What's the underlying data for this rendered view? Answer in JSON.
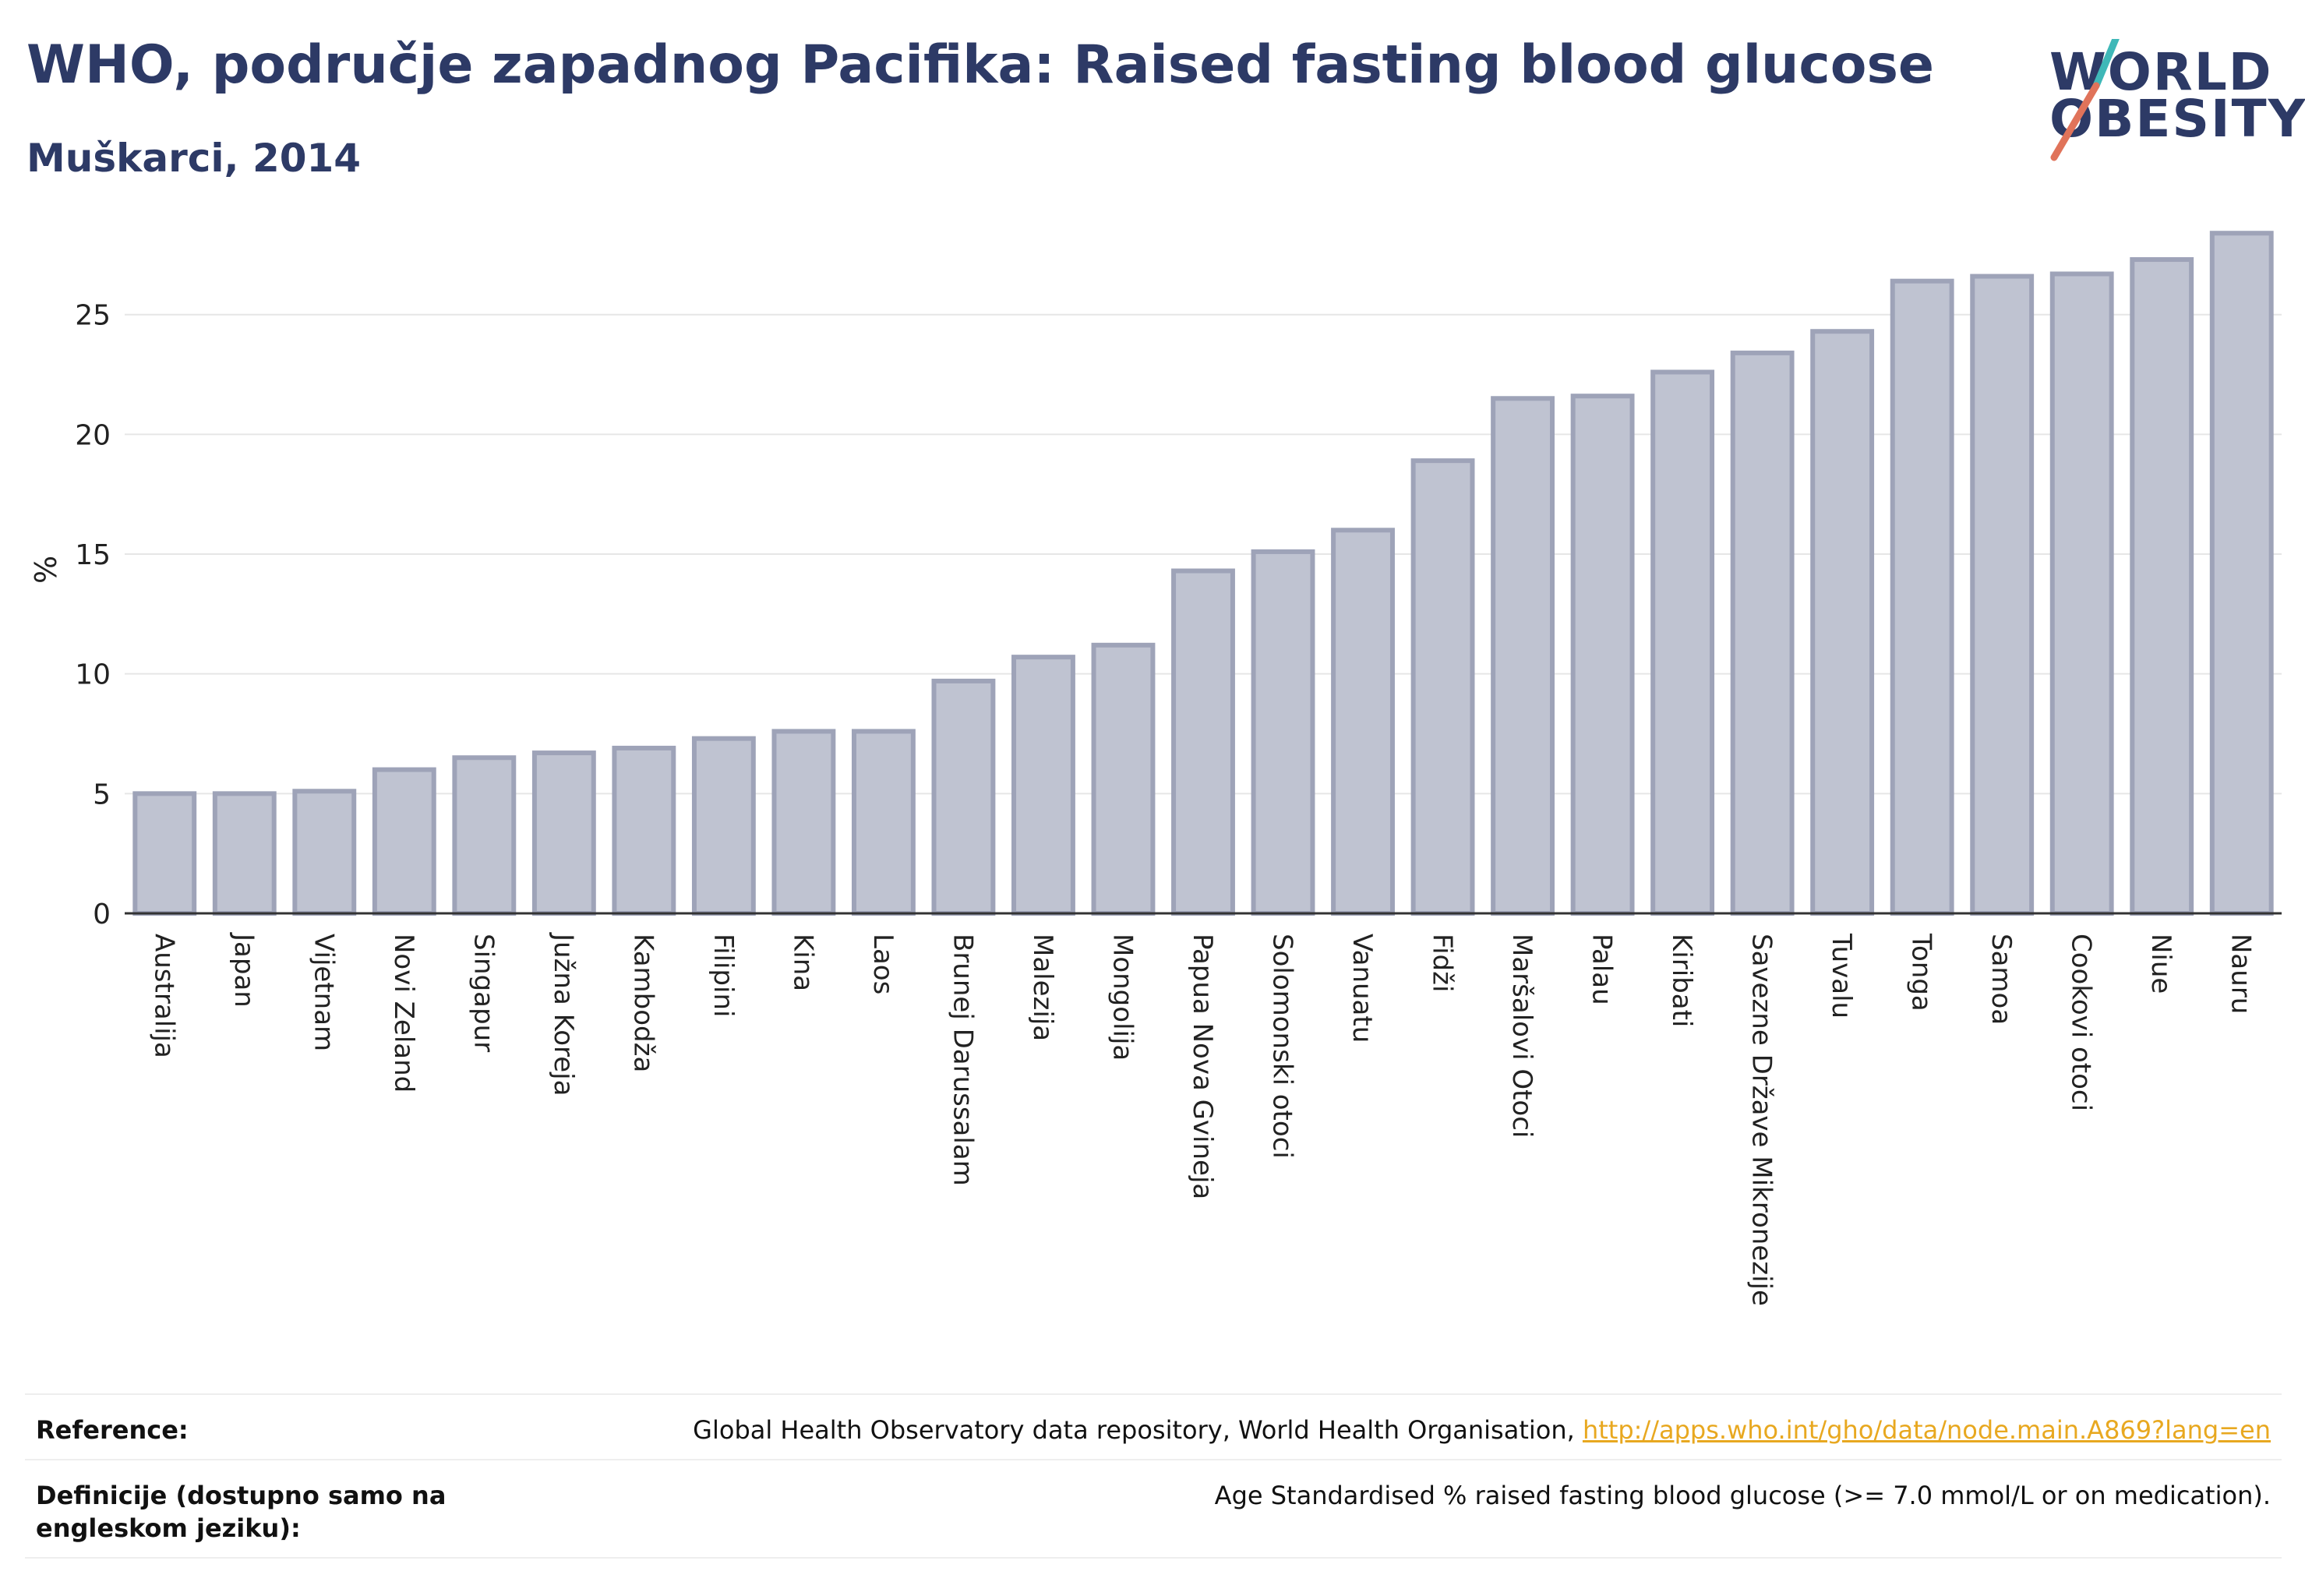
{
  "header": {
    "title": "WHO, područje zapadnog Pacifika: Raised fasting blood glucose",
    "subtitle": "Muškarci, 2014"
  },
  "logo": {
    "line1": "WORLD",
    "line2": "OBESITY",
    "colors": {
      "text": "#2d3a66",
      "slash_top": "#3fb8b8",
      "slash_bottom": "#e0735a"
    }
  },
  "chart_data": {
    "type": "bar",
    "ylabel": "%",
    "ylim": [
      0,
      28.7
    ],
    "yticks": [
      0,
      5,
      10,
      15,
      20,
      25
    ],
    "grid": true,
    "categories": [
      "Australija",
      "Japan",
      "Vijetnam",
      "Novi Zeland",
      "Singapur",
      "Južna Koreja",
      "Kambodža",
      "Filipini",
      "Kina",
      "Laos",
      "Brunej Darussalam",
      "Malezija",
      "Mongolija",
      "Papua Nova Gvineja",
      "Solomonski otoci",
      "Vanuatu",
      "Fidži",
      "Maršalovi Otoci",
      "Palau",
      "Kiribati",
      "Savezne Države Mikronezije",
      "Tuvalu",
      "Tonga",
      "Samoa",
      "Cookovi otoci",
      "Niue",
      "Nauru"
    ],
    "values": [
      5.0,
      5.0,
      5.1,
      6.0,
      6.5,
      6.7,
      6.9,
      7.3,
      7.6,
      7.6,
      9.7,
      10.7,
      11.2,
      14.3,
      15.1,
      16.0,
      18.9,
      21.5,
      21.6,
      22.6,
      23.4,
      24.3,
      26.4,
      26.6,
      26.7,
      27.3,
      28.4
    ],
    "colors": {
      "bar_fill": "#bfc3d1",
      "bar_stroke": "#9ea3b8",
      "axis": "#333333",
      "grid": "#e6e6e6",
      "text": "#222222"
    }
  },
  "references": {
    "reference_label": "Reference:",
    "reference_text": "Global Health Observatory data repository, World Health Organisation,",
    "reference_link": "http://apps.who.int/gho/data/node.main.A869?lang=en",
    "definition_label": "Definicije (dostupno samo na engleskom jeziku):",
    "definition_text": "Age Standardised % raised fasting blood glucose (>= 7.0 mmol/L or on medication)."
  }
}
